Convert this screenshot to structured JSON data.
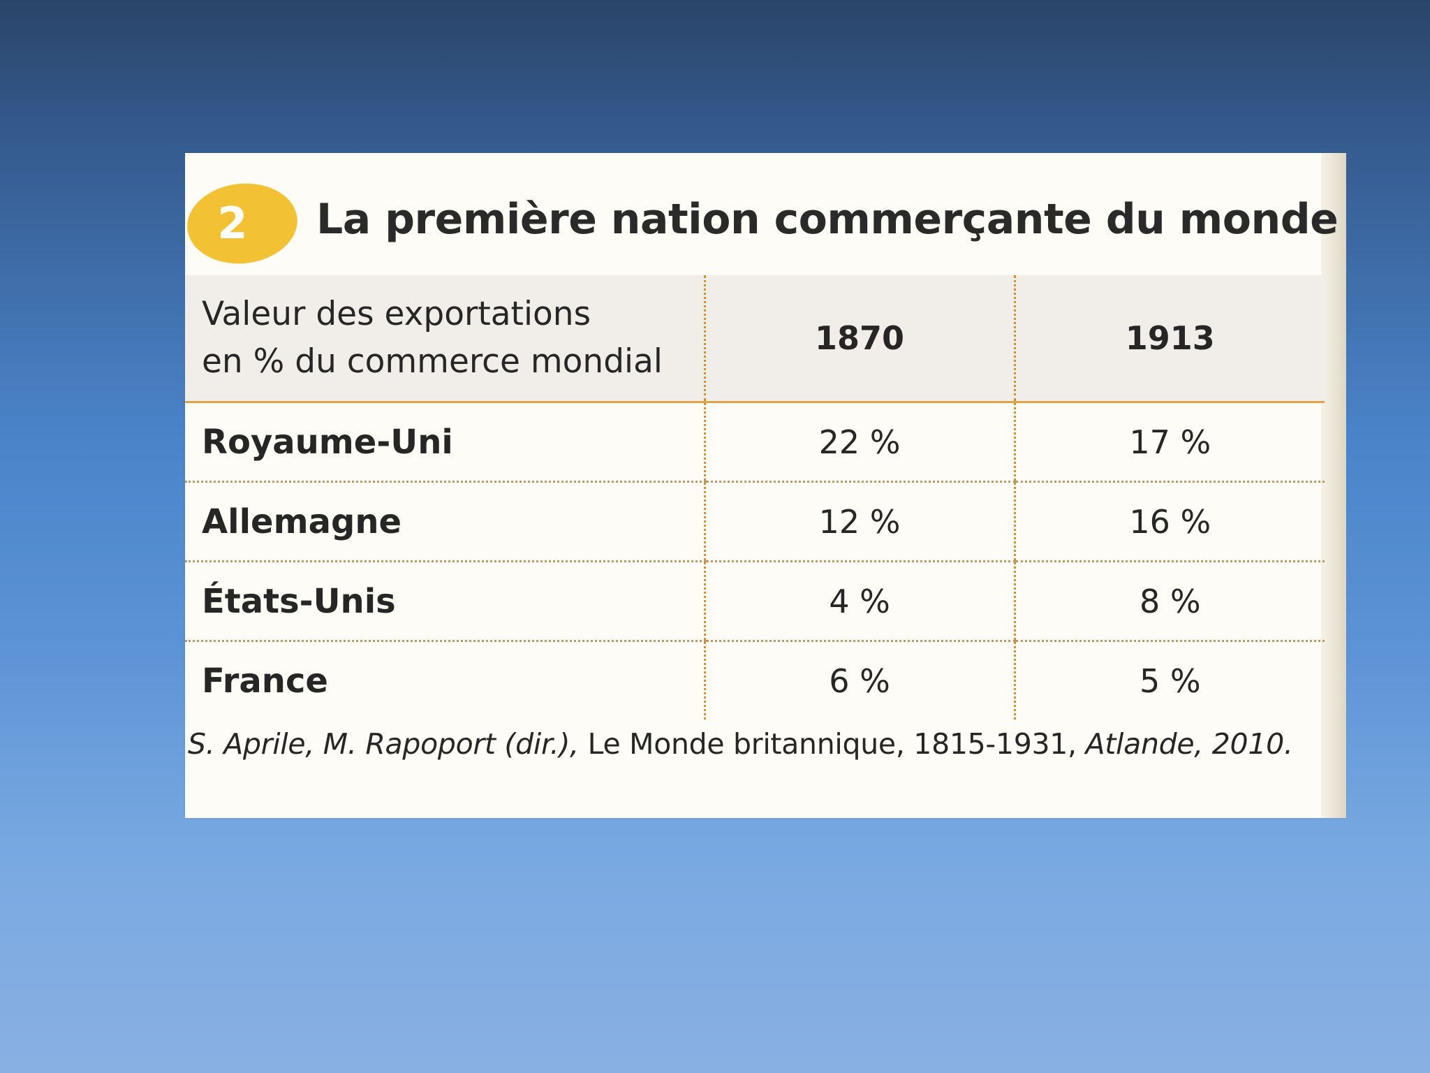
{
  "document": {
    "badge_number": "2",
    "title": "La première nation commerçante du monde",
    "table": {
      "header_label_line1": "Valeur des exportations",
      "header_label_line2": "en % du commerce mondial",
      "columns": [
        "1870",
        "1913"
      ],
      "rows": [
        {
          "country": "Royaume-Uni",
          "values": [
            "22 %",
            "17 %"
          ]
        },
        {
          "country": "Allemagne",
          "values": [
            "12 %",
            "16 %"
          ]
        },
        {
          "country": "États-Unis",
          "values": [
            "4 %",
            "8 %"
          ]
        },
        {
          "country": "France",
          "values": [
            "6 %",
            "5 %"
          ]
        }
      ]
    },
    "source": {
      "authors": "S. Aprile, M. Rapoport (dir.),",
      "work": " Le Monde britannique, 1815-1931,",
      "publisher": " Atlande, 2010."
    }
  },
  "colors": {
    "badge": "#f3c234",
    "rule": "#e1a34a",
    "header_bg": "#f1ede8",
    "paper": "#fdfcf6"
  }
}
